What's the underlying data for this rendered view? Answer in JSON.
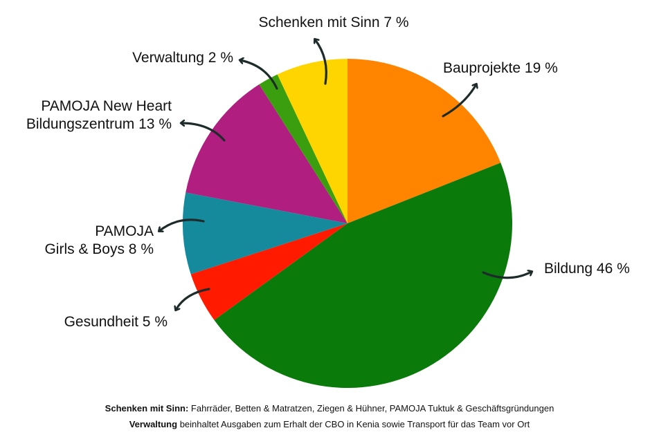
{
  "chart_data": {
    "type": "pie",
    "slices": [
      {
        "label": "Bauprojekte 19 %",
        "lines": [
          "Bauprojekte 19 %"
        ],
        "value": 19,
        "color": "#FF8400"
      },
      {
        "label": "Bildung 46 %",
        "lines": [
          "Bildung 46 %"
        ],
        "value": 46,
        "color": "#0A7A0A"
      },
      {
        "label": "Gesundheit 5 %",
        "lines": [
          "Gesundheit 5 %"
        ],
        "value": 5,
        "color": "#FF1A00"
      },
      {
        "label": "PAMOJA Girls & Boys 8 %",
        "lines": [
          "PAMOJA",
          "Girls & Boys 8 %"
        ],
        "value": 8,
        "color": "#148A9C"
      },
      {
        "label": "PAMOJA New Heart Bildungszentrum 13 %",
        "lines": [
          "PAMOJA New Heart",
          "Bildungszentrum 13 %"
        ],
        "value": 13,
        "color": "#B01E80"
      },
      {
        "label": "Verwaltung 2 %",
        "lines": [
          "Verwaltung 2 %"
        ],
        "value": 2,
        "color": "#3A9E0E"
      },
      {
        "label": "Schenken mit Sinn 7 %",
        "lines": [
          "Schenken mit Sinn 7 %"
        ],
        "value": 7,
        "color": "#FFD500"
      }
    ]
  },
  "footnotes": {
    "line1_bold": "Schenken mit Sinn:",
    "line1_text": " Fahrräder, Betten & Matratzen, Ziegen & Hühner, PAMOJA Tuktuk & Geschäftsgründungen",
    "line2_bold": "Verwaltung",
    "line2_text": " beinhaltet Ausgaben zum Erhalt der CBO in Kenia sowie Transport für das Team vor Ort"
  }
}
